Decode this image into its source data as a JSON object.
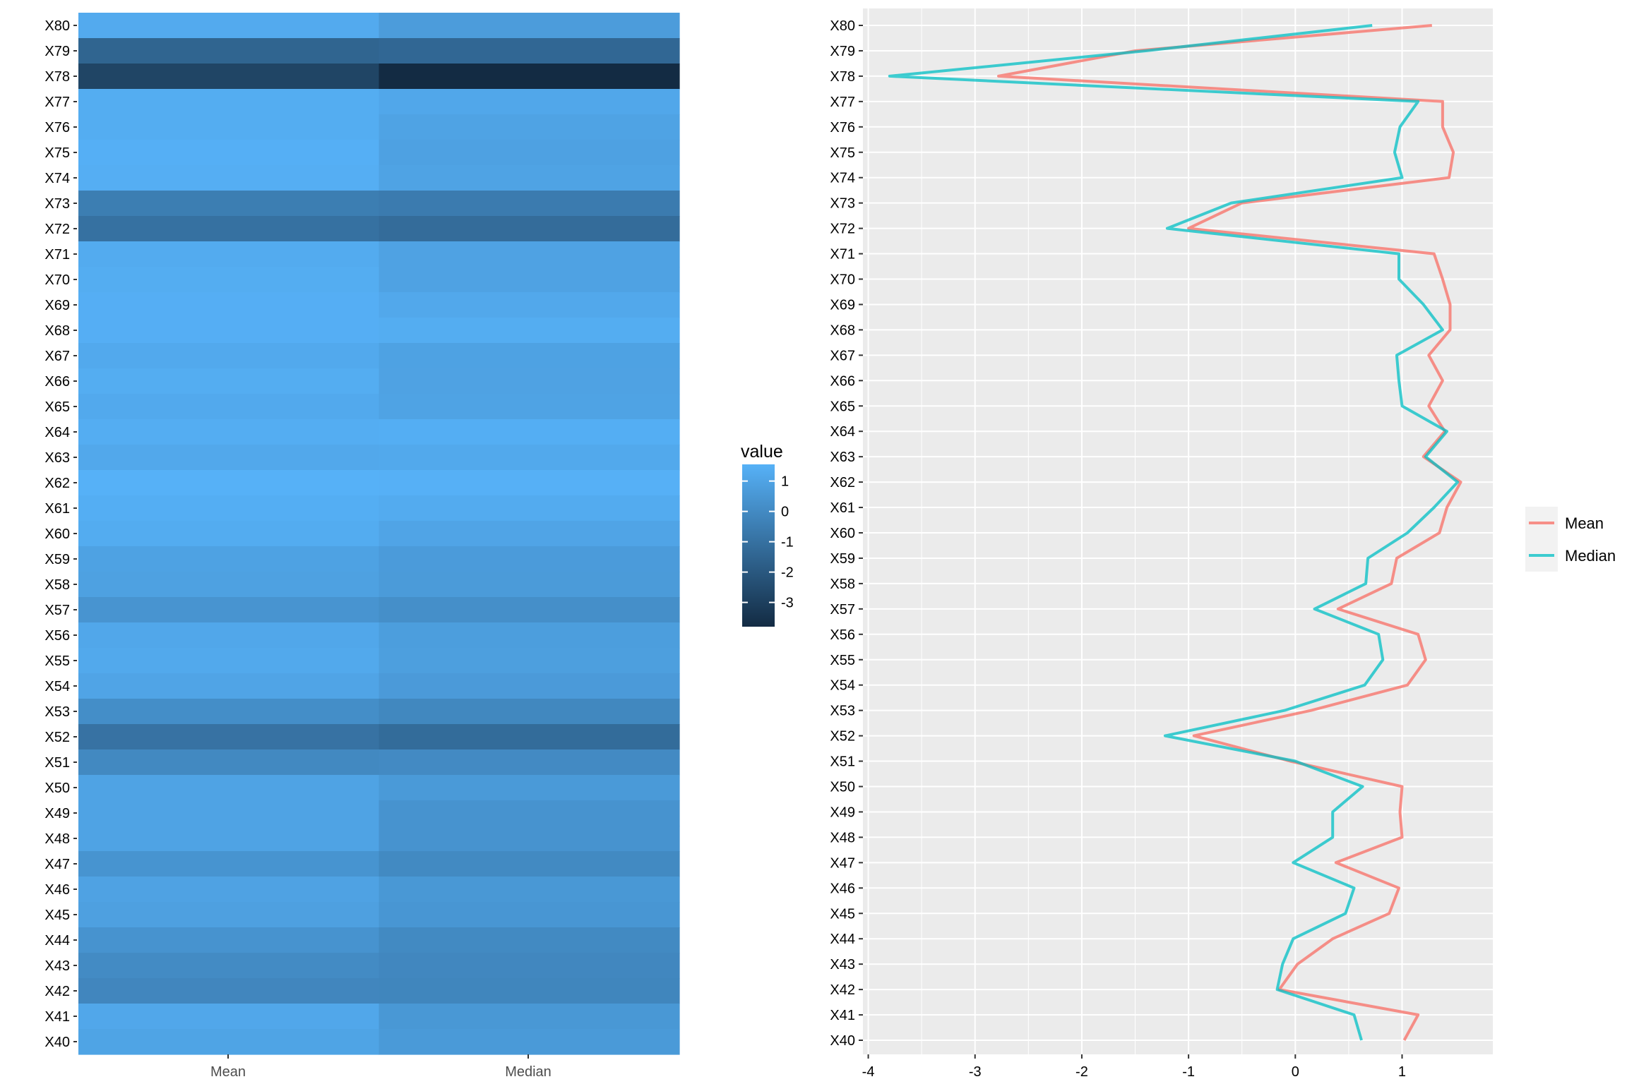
{
  "chart_data": [
    {
      "type": "heatmap",
      "title": "",
      "xlabel": "",
      "ylabel": "",
      "columns": [
        "Mean",
        "Median"
      ],
      "rows": [
        "X80",
        "X79",
        "X78",
        "X77",
        "X76",
        "X75",
        "X74",
        "X73",
        "X72",
        "X71",
        "X70",
        "X69",
        "X68",
        "X67",
        "X66",
        "X65",
        "X64",
        "X63",
        "X62",
        "X61",
        "X60",
        "X59",
        "X58",
        "X57",
        "X56",
        "X55",
        "X54",
        "X53",
        "X52",
        "X51",
        "X50",
        "X49",
        "X48",
        "X47",
        "X46",
        "X45",
        "X44",
        "X43",
        "X42",
        "X41",
        "X40"
      ],
      "values_mean": [
        1.28,
        -1.5,
        -2.78,
        1.38,
        1.38,
        1.48,
        1.44,
        -0.5,
        -1.0,
        1.3,
        1.38,
        1.45,
        1.45,
        1.25,
        1.38,
        1.25,
        1.4,
        1.2,
        1.55,
        1.42,
        1.35,
        0.95,
        0.9,
        0.4,
        1.15,
        1.22,
        1.05,
        0.15,
        -0.95,
        -0.05,
        1.0,
        0.98,
        1.0,
        0.38,
        0.97,
        0.88,
        0.35,
        0.02,
        -0.15,
        1.15,
        1.02
      ],
      "values_median": [
        0.72,
        -1.4,
        -3.8,
        1.15,
        0.98,
        0.93,
        1.0,
        -0.6,
        -1.2,
        0.97,
        0.97,
        1.2,
        1.38,
        0.95,
        0.97,
        1.0,
        1.42,
        1.22,
        1.52,
        1.3,
        1.05,
        0.68,
        0.66,
        0.18,
        0.78,
        0.82,
        0.65,
        -0.1,
        -1.22,
        0.0,
        0.63,
        0.35,
        0.35,
        -0.02,
        0.55,
        0.47,
        -0.02,
        -0.12,
        -0.17,
        0.55,
        0.62
      ],
      "legend": {
        "title": "value",
        "ticks": [
          1,
          0,
          -1,
          -2,
          -3
        ],
        "range": [
          -3.8,
          1.55
        ],
        "low_color": "#132B43",
        "high_color": "#56B1F7"
      }
    },
    {
      "type": "line",
      "title": "",
      "xlabel": "",
      "ylabel": "",
      "y_categories": [
        "X80",
        "X79",
        "X78",
        "X77",
        "X76",
        "X75",
        "X74",
        "X73",
        "X72",
        "X71",
        "X70",
        "X69",
        "X68",
        "X67",
        "X66",
        "X65",
        "X64",
        "X63",
        "X62",
        "X61",
        "X60",
        "X59",
        "X58",
        "X57",
        "X56",
        "X55",
        "X54",
        "X53",
        "X52",
        "X51",
        "X50",
        "X49",
        "X48",
        "X47",
        "X46",
        "X45",
        "X44",
        "X43",
        "X42",
        "X41",
        "X40"
      ],
      "xlim": [
        -4.05,
        1.85
      ],
      "x_ticks": [
        -4,
        -3,
        -2,
        -1,
        0,
        1
      ],
      "grid": true,
      "legend_position": "right",
      "series": [
        {
          "name": "Mean",
          "color": "#F8766D",
          "values": [
            1.28,
            -1.5,
            -2.78,
            1.38,
            1.38,
            1.48,
            1.44,
            -0.5,
            -1.0,
            1.3,
            1.38,
            1.45,
            1.45,
            1.25,
            1.38,
            1.25,
            1.4,
            1.2,
            1.55,
            1.42,
            1.35,
            0.95,
            0.9,
            0.4,
            1.15,
            1.22,
            1.05,
            0.15,
            -0.95,
            -0.05,
            1.0,
            0.98,
            1.0,
            0.38,
            0.97,
            0.88,
            0.35,
            0.02,
            -0.15,
            1.15,
            1.02
          ]
        },
        {
          "name": "Median",
          "color": "#00BFC4",
          "values": [
            0.72,
            -1.4,
            -3.8,
            1.15,
            0.98,
            0.93,
            1.0,
            -0.6,
            -1.2,
            0.97,
            0.97,
            1.2,
            1.38,
            0.95,
            0.97,
            1.0,
            1.42,
            1.22,
            1.52,
            1.3,
            1.05,
            0.68,
            0.66,
            0.18,
            0.78,
            0.82,
            0.65,
            -0.1,
            -1.22,
            0.0,
            0.63,
            0.35,
            0.35,
            -0.02,
            0.55,
            0.47,
            -0.02,
            -0.12,
            -0.17,
            0.55,
            0.62
          ]
        }
      ]
    }
  ]
}
